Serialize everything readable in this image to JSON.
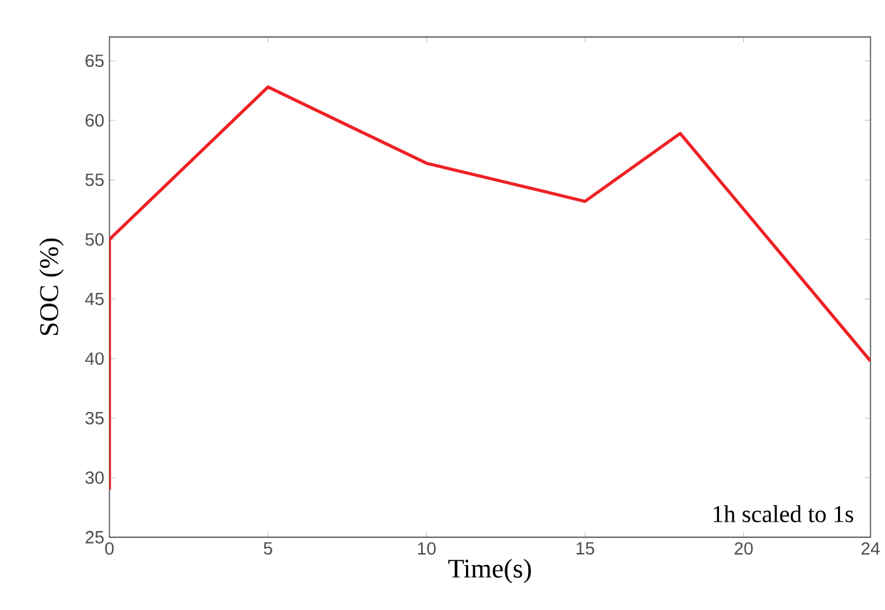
{
  "chart_data": {
    "type": "line",
    "xlabel": "Time(s)",
    "ylabel": "SOC (%)",
    "annotations": [
      "1h scaled to 1s"
    ],
    "x": [
      0,
      0,
      5,
      10,
      15,
      18,
      24
    ],
    "series": [
      {
        "color": "#ee2024",
        "values": [
          29,
          50,
          62.8,
          56.4,
          53.2,
          58.9,
          39.8
        ]
      }
    ],
    "xlim": [
      0,
      24
    ],
    "ylim": [
      25,
      67
    ],
    "xticks": [
      0,
      5,
      10,
      15,
      20,
      24
    ],
    "yticks": [
      25,
      30,
      35,
      40,
      45,
      50,
      55,
      60,
      65
    ],
    "grid": false,
    "marker": "none",
    "line_style": "solid"
  }
}
